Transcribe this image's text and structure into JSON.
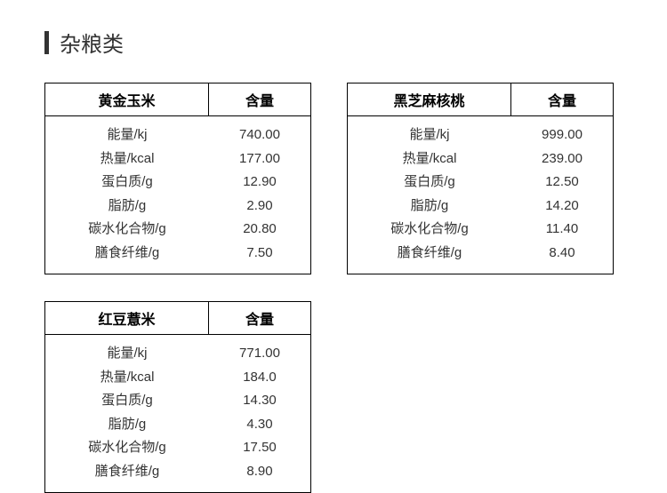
{
  "section_title": "杂粮类",
  "title_bar_color": "#333333",
  "text_color": "#333333",
  "border_color": "#000000",
  "background_color": "#ffffff",
  "title_fontsize": 24,
  "header_fontsize": 16,
  "cell_fontsize": 15,
  "value_header": "含量",
  "tables": [
    {
      "name": "黄金玉米",
      "rows": [
        {
          "label": "能量/kj",
          "value": "740.00"
        },
        {
          "label": "热量/kcal",
          "value": "177.00"
        },
        {
          "label": "蛋白质/g",
          "value": "12.90"
        },
        {
          "label": "脂肪/g",
          "value": "2.90"
        },
        {
          "label": "碳水化合物/g",
          "value": "20.80"
        },
        {
          "label": "膳食纤维/g",
          "value": "7.50"
        }
      ]
    },
    {
      "name": "黑芝麻核桃",
      "rows": [
        {
          "label": "能量/kj",
          "value": "999.00"
        },
        {
          "label": "热量/kcal",
          "value": "239.00"
        },
        {
          "label": "蛋白质/g",
          "value": "12.50"
        },
        {
          "label": "脂肪/g",
          "value": "14.20"
        },
        {
          "label": "碳水化合物/g",
          "value": "11.40"
        },
        {
          "label": "膳食纤维/g",
          "value": "8.40"
        }
      ]
    },
    {
      "name": "红豆薏米",
      "rows": [
        {
          "label": "能量/kj",
          "value": "771.00"
        },
        {
          "label": "热量/kcal",
          "value": "184.0"
        },
        {
          "label": "蛋白质/g",
          "value": "14.30"
        },
        {
          "label": "脂肪/g",
          "value": "4.30"
        },
        {
          "label": "碳水化合物/g",
          "value": "17.50"
        },
        {
          "label": "膳食纤维/g",
          "value": "8.90"
        }
      ]
    }
  ]
}
